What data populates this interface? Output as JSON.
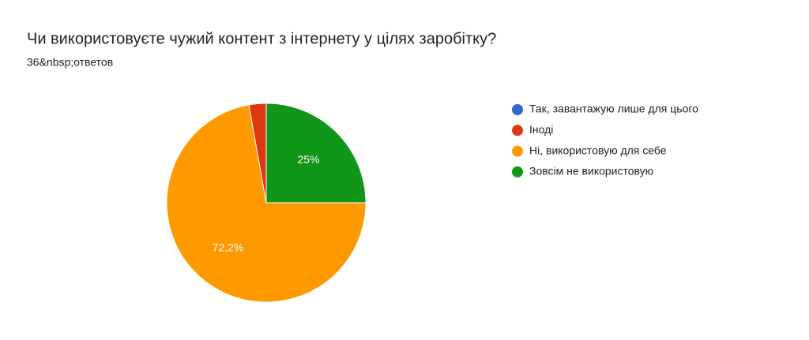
{
  "chart_data": {
    "type": "pie",
    "title": "Чи використовуєте чужий контент з інтернету у цілях заробітку?",
    "subtitle": "36&nbsp;ответов",
    "categories": [
      "Так, завантажую лише для цього",
      "Іноді",
      "Ні, використовую для себе",
      "Зовсім не використовую"
    ],
    "values": [
      0,
      2.8,
      72.2,
      25
    ],
    "value_labels": [
      null,
      null,
      "72,2%",
      "25%"
    ],
    "colors": [
      "#3366cc",
      "#dc3912",
      "#ff9900",
      "#109618"
    ],
    "legend": "right"
  }
}
